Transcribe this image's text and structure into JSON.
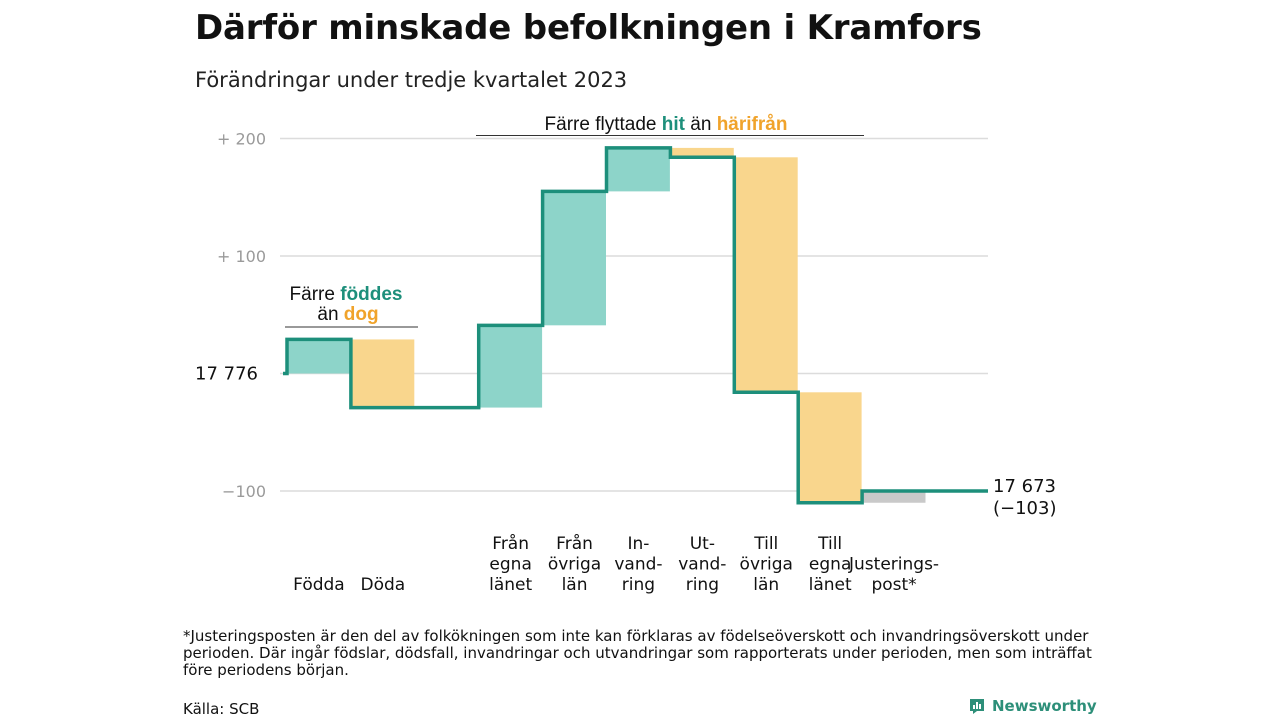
{
  "header": {
    "title": "Därför minskade befolkningen i Kramfors",
    "subtitle": "Förändringar under tredje kvartalet 2023"
  },
  "chart_data": {
    "type": "waterfall",
    "start_value": 17776,
    "start_label": "17  776",
    "end_value": 17673,
    "end_label": "17 673",
    "end_change_label": "(−103)",
    "y_range": [
      -120,
      210
    ],
    "y_ticks": [
      {
        "value": 200,
        "label": "+  200"
      },
      {
        "value": 100,
        "label": "+  100"
      },
      {
        "value": -100,
        "label": "−100"
      }
    ],
    "gridlines": [
      200,
      100,
      0,
      -100
    ],
    "steps": [
      {
        "label": "Födda",
        "change": 29,
        "color": "#8dd4c9"
      },
      {
        "label": "Döda",
        "change": -58,
        "color": "#f9d68d"
      },
      {
        "label": "",
        "change": 0,
        "color": "none"
      },
      {
        "label": "Från\negna\nlänet",
        "change": 70,
        "color": "#8dd4c9"
      },
      {
        "label": "Från\növriga\nlän",
        "change": 114,
        "color": "#8dd4c9"
      },
      {
        "label": "In-\nvand-\nring",
        "change": 37,
        "color": "#8dd4c9"
      },
      {
        "label": "Ut-\nvand-\nring",
        "change": -8,
        "color": "#f9d68d"
      },
      {
        "label": "Till\növriga\nlän",
        "change": -200,
        "color": "#f9d68d"
      },
      {
        "label": "Till\negna\nlänet",
        "change": -94,
        "color": "#f9d68d"
      },
      {
        "label": "Justerings-\npost*",
        "change": 10,
        "color": "#c9c9c9"
      }
    ],
    "annotations": {
      "births": {
        "prefix": "Färre ",
        "highlight": "föddes",
        "line2_prefix": "än ",
        "highlight2": "dog"
      },
      "moves": {
        "prefix": "Färre flyttade ",
        "highlight": "hit",
        "mid": " än ",
        "highlight2": "härifrån"
      }
    },
    "colors": {
      "line": "#1d8f7b",
      "teal_text": "#1d8f7b",
      "orange_text": "#f0a32b",
      "grid": "#dcdcdc",
      "tick": "#9a9a9a"
    }
  },
  "footer": {
    "footnote": "*Justeringsposten är den del av folkökningen som inte kan förklaras av födelseöverskott och invandringsöverskott under perioden. Där ingår födslar, dödsfall, invandringar och utvandringar som rapporterats under perioden, men som inträffat före periodens början.",
    "source": "Källa: SCB",
    "brand": "Newsworthy",
    "brand_icon": "newsworthy-logo-icon"
  }
}
